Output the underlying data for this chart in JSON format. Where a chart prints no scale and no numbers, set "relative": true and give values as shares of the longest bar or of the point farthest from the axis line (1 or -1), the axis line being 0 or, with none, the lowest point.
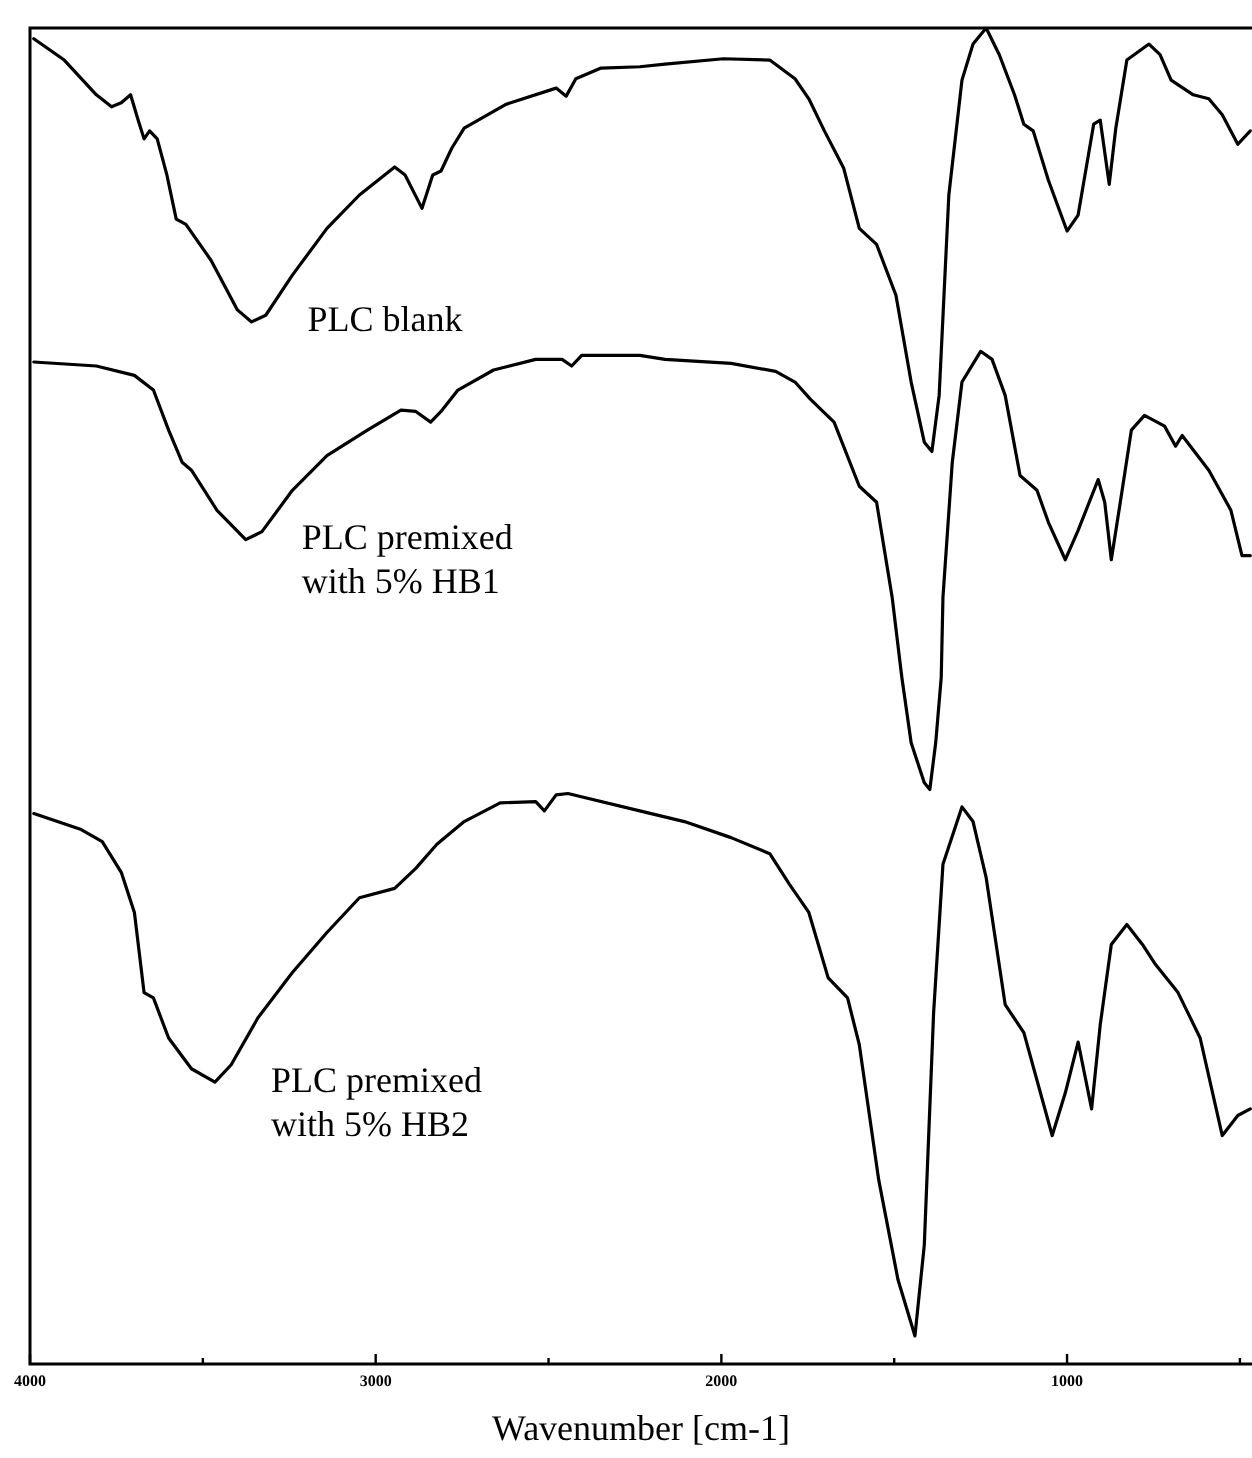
{
  "chart_data": {
    "type": "line",
    "relative": true,
    "xlabel": "Wavenumber [cm-1]",
    "xlim": [
      4000,
      465
    ],
    "xticks": [
      4000,
      {
        "value": 3500,
        "label": null
      },
      3000,
      {
        "value": 2500,
        "label": null
      },
      2000,
      {
        "value": 1500,
        "label": null
      },
      1000,
      {
        "value": 500,
        "label": null
      }
    ],
    "grid": false,
    "legend": false,
    "marker": "none",
    "line_style": "solid",
    "series": [
      {
        "name": "PLC blank",
        "color": "#000000",
        "x": [
          3989,
          3901,
          3808,
          3764,
          3736,
          3709,
          3687,
          3670,
          3654,
          3632,
          3604,
          3577,
          3549,
          3476,
          3400,
          3359,
          3318,
          3241,
          3141,
          3047,
          2945,
          2915,
          2866,
          2835,
          2811,
          2780,
          2744,
          2622,
          2478,
          2449,
          2421,
          2348,
          2236,
          2163,
          1994,
          1860,
          1787,
          1747,
          1702,
          1646,
          1601,
          1551,
          1495,
          1451,
          1413,
          1391,
          1370,
          1342,
          1304,
          1272,
          1234,
          1196,
          1152,
          1125,
          1098,
          1054,
          1000,
          968,
          923,
          904,
          878,
          859,
          827,
          763,
          731,
          699,
          635,
          590,
          551,
          506,
          470
        ],
        "values": [
          0.992,
          0.976,
          0.95,
          0.941,
          0.944,
          0.95,
          0.931,
          0.917,
          0.923,
          0.917,
          0.89,
          0.857,
          0.853,
          0.826,
          0.789,
          0.78,
          0.785,
          0.815,
          0.85,
          0.875,
          0.896,
          0.89,
          0.865,
          0.89,
          0.893,
          0.91,
          0.925,
          0.943,
          0.955,
          0.949,
          0.962,
          0.97,
          0.971,
          0.973,
          0.977,
          0.976,
          0.962,
          0.947,
          0.923,
          0.895,
          0.85,
          0.838,
          0.8,
          0.735,
          0.69,
          0.683,
          0.725,
          0.875,
          0.961,
          0.988,
          1.0,
          0.98,
          0.95,
          0.928,
          0.923,
          0.886,
          0.848,
          0.86,
          0.928,
          0.931,
          0.883,
          0.925,
          0.976,
          0.988,
          0.98,
          0.961,
          0.95,
          0.947,
          0.935,
          0.913,
          0.923
        ]
      },
      {
        "name": "PLC premixed with 5% HB1",
        "color": "#000000",
        "x": [
          3989,
          3808,
          3698,
          3643,
          3599,
          3560,
          3533,
          3459,
          3376,
          3329,
          3241,
          3141,
          3024,
          2927,
          2884,
          2841,
          2811,
          2762,
          2659,
          2537,
          2461,
          2433,
          2404,
          2236,
          2163,
          1972,
          1843,
          1787,
          1742,
          1674,
          1601,
          1551,
          1506,
          1478,
          1451,
          1413,
          1397,
          1380,
          1364,
          1359,
          1332,
          1304,
          1250,
          1217,
          1179,
          1136,
          1087,
          1054,
          1005,
          968,
          910,
          891,
          872,
          846,
          814,
          776,
          718,
          686,
          667,
          590,
          526,
          494,
          470
        ],
        "values": [
          0.75,
          0.747,
          0.74,
          0.729,
          0.699,
          0.675,
          0.669,
          0.639,
          0.617,
          0.623,
          0.654,
          0.68,
          0.699,
          0.714,
          0.713,
          0.705,
          0.713,
          0.729,
          0.744,
          0.752,
          0.752,
          0.747,
          0.755,
          0.755,
          0.752,
          0.749,
          0.743,
          0.735,
          0.722,
          0.705,
          0.657,
          0.645,
          0.574,
          0.514,
          0.465,
          0.435,
          0.43,
          0.465,
          0.514,
          0.574,
          0.675,
          0.735,
          0.758,
          0.752,
          0.725,
          0.665,
          0.654,
          0.63,
          0.602,
          0.624,
          0.662,
          0.645,
          0.602,
          0.645,
          0.699,
          0.71,
          0.702,
          0.687,
          0.695,
          0.669,
          0.639,
          0.605,
          0.605
        ]
      },
      {
        "name": "PLC premixed with 5% HB2",
        "color": "#000000",
        "x": [
          3989,
          3852,
          3791,
          3736,
          3698,
          3670,
          3643,
          3599,
          3533,
          3465,
          3418,
          3341,
          3241,
          3141,
          3047,
          2945,
          2884,
          2823,
          2744,
          2640,
          2537,
          2512,
          2478,
          2444,
          2236,
          2107,
          1972,
          1860,
          1803,
          1747,
          1691,
          1635,
          1601,
          1545,
          1489,
          1440,
          1413,
          1386,
          1359,
          1304,
          1272,
          1234,
          1179,
          1125,
          1043,
          1005,
          968,
          929,
          904,
          872,
          827,
          782,
          744,
          679,
          615,
          551,
          506,
          470
        ],
        "values": [
          0.412,
          0.4,
          0.391,
          0.368,
          0.338,
          0.278,
          0.274,
          0.244,
          0.221,
          0.211,
          0.224,
          0.259,
          0.293,
          0.323,
          0.349,
          0.356,
          0.371,
          0.389,
          0.406,
          0.42,
          0.421,
          0.414,
          0.426,
          0.427,
          0.414,
          0.406,
          0.394,
          0.382,
          0.359,
          0.338,
          0.289,
          0.274,
          0.239,
          0.138,
          0.063,
          0.021,
          0.089,
          0.263,
          0.374,
          0.417,
          0.406,
          0.364,
          0.269,
          0.248,
          0.171,
          0.203,
          0.241,
          0.191,
          0.254,
          0.314,
          0.329,
          0.314,
          0.299,
          0.278,
          0.244,
          0.171,
          0.186,
          0.191
        ]
      }
    ]
  }
}
